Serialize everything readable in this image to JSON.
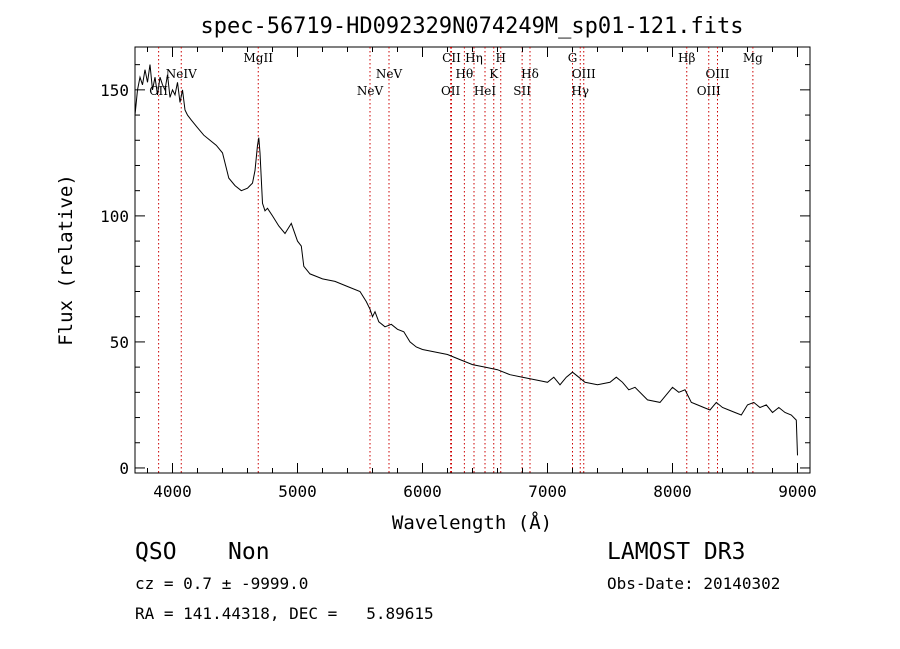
{
  "chart_data": {
    "type": "line",
    "title": "spec-56719-HD092329N074249M_sp01-121.fits",
    "xlabel": "Wavelength (Å)",
    "ylabel": "Flux (relative)",
    "xlim": [
      3700,
      9100
    ],
    "ylim": [
      -2,
      167
    ],
    "xticks": [
      4000,
      5000,
      6000,
      7000,
      8000,
      9000
    ],
    "yticks": [
      0,
      50,
      100,
      150
    ],
    "grid": false,
    "line_color": "#000000",
    "marker_color": "#cc0000",
    "series": [
      {
        "x": [
          3700,
          3720,
          3740,
          3760,
          3780,
          3800,
          3820,
          3840,
          3860,
          3880,
          3900,
          3920,
          3940,
          3960,
          3980,
          4000,
          4020,
          4040,
          4060,
          4080,
          4100,
          4120,
          4150,
          4200,
          4250,
          4300,
          4350,
          4400,
          4450,
          4500,
          4550,
          4600,
          4620,
          4640,
          4660,
          4680,
          4690,
          4700,
          4720,
          4740,
          4760,
          4800,
          4850,
          4900,
          4950,
          5000,
          5030,
          5050,
          5100,
          5150,
          5200,
          5300,
          5400,
          5500,
          5550,
          5580,
          5600,
          5620,
          5650,
          5700,
          5750,
          5800,
          5850,
          5900,
          5950,
          6000,
          6100,
          6200,
          6300,
          6400,
          6500,
          6600,
          6700,
          6800,
          6900,
          7000,
          7050,
          7100,
          7150,
          7200,
          7250,
          7300,
          7400,
          7500,
          7550,
          7600,
          7650,
          7700,
          7800,
          7900,
          8000,
          8050,
          8100,
          8150,
          8200,
          8250,
          8300,
          8350,
          8400,
          8450,
          8500,
          8550,
          8600,
          8650,
          8700,
          8750,
          8800,
          8850,
          8900,
          8950,
          8990,
          9000
        ],
        "y": [
          140,
          150,
          155,
          152,
          158,
          153,
          160,
          150,
          155,
          148,
          155,
          152,
          150,
          156,
          147,
          150,
          148,
          153,
          145,
          150,
          142,
          140,
          138,
          135,
          132,
          130,
          128,
          125,
          115,
          112,
          110,
          111,
          112,
          113,
          118,
          128,
          131,
          125,
          105,
          102,
          103,
          100,
          96,
          93,
          97,
          90,
          88,
          80,
          77,
          76,
          75,
          74,
          72,
          70,
          66,
          63,
          60,
          62,
          58,
          56,
          57,
          55,
          54,
          50,
          48,
          47,
          46,
          45,
          43,
          41,
          40,
          39,
          37,
          36,
          35,
          34,
          36,
          33,
          36,
          38,
          36,
          34,
          33,
          34,
          36,
          34,
          31,
          32,
          27,
          26,
          32,
          30,
          31,
          26,
          25,
          24,
          23,
          26,
          24,
          23,
          22,
          21,
          25,
          26,
          24,
          25,
          22,
          24,
          22,
          21,
          19,
          5
        ]
      }
    ],
    "lines": [
      {
        "x": 3889,
        "label": "CII",
        "row": 2
      },
      {
        "x": 4070,
        "label": "NeIV",
        "row": 1
      },
      {
        "x": 4686,
        "label": "MgII",
        "row": 0
      },
      {
        "x": 5580,
        "label": "NeV",
        "row": 2
      },
      {
        "x": 5732,
        "label": "NeV",
        "row": 1
      },
      {
        "x": 6225,
        "label": "OII",
        "row": 2
      },
      {
        "x": 6232,
        "label": "CII",
        "row": 0
      },
      {
        "x": 6335,
        "label": "Hθ",
        "row": 1
      },
      {
        "x": 6412,
        "label": "Hη",
        "row": 0
      },
      {
        "x": 6500,
        "label": "HeI",
        "row": 2
      },
      {
        "x": 6570,
        "label": "K",
        "row": 1
      },
      {
        "x": 6626,
        "label": "H",
        "row": 0
      },
      {
        "x": 6797,
        "label": "SII",
        "row": 2
      },
      {
        "x": 6860,
        "label": "Hδ",
        "row": 1
      },
      {
        "x": 7200,
        "label": "G",
        "row": 0
      },
      {
        "x": 7262,
        "label": "Hγ",
        "row": 2
      },
      {
        "x": 7290,
        "label": "OIII",
        "row": 1
      },
      {
        "x": 8114,
        "label": "Hβ",
        "row": 0
      },
      {
        "x": 8290,
        "label": "OIII",
        "row": 2
      },
      {
        "x": 8360,
        "label": "OIII",
        "row": 1
      },
      {
        "x": 8643,
        "label": "Mg",
        "row": 0
      }
    ]
  },
  "info": {
    "class": "QSO",
    "subclass": "Non",
    "survey": "LAMOST DR3",
    "cz": "cz = 0.7 ± -9999.0",
    "obs_date": "Obs-Date: 20140302",
    "coords": "RA = 141.44318, DEC =   5.89615"
  }
}
